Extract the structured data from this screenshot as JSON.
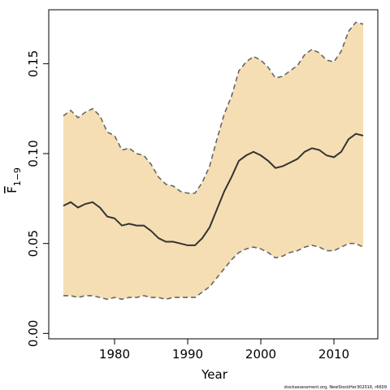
{
  "chart_data": {
    "type": "area",
    "xlabel": "Year",
    "ylabel": "F",
    "ylabel_sub": "1−9",
    "xlim": [
      1971,
      2016
    ],
    "ylim": [
      -0.003,
      0.18
    ],
    "xticks": [
      1980,
      1990,
      2000,
      2010
    ],
    "yticks": [
      0.0,
      0.05,
      0.1,
      0.15
    ],
    "ytick_labels": [
      "0.00",
      "0.05",
      "0.10",
      "0.15"
    ],
    "band_color": "#f5deb3",
    "line_color": "#333333",
    "bound_color": "#666666",
    "x": [
      1973,
      1974,
      1975,
      1976,
      1977,
      1978,
      1979,
      1980,
      1981,
      1982,
      1983,
      1984,
      1985,
      1986,
      1987,
      1988,
      1989,
      1990,
      1991,
      1992,
      1993,
      1994,
      1995,
      1996,
      1997,
      1998,
      1999,
      2000,
      2001,
      2002,
      2003,
      2004,
      2005,
      2006,
      2007,
      2008,
      2009,
      2010,
      2011,
      2012,
      2013,
      2014
    ],
    "series": [
      {
        "role": "estimate",
        "values": [
          0.071,
          0.073,
          0.07,
          0.072,
          0.073,
          0.07,
          0.065,
          0.064,
          0.06,
          0.061,
          0.06,
          0.06,
          0.057,
          0.053,
          0.051,
          0.051,
          0.05,
          0.049,
          0.049,
          0.053,
          0.059,
          0.069,
          0.079,
          0.087,
          0.096,
          0.099,
          0.101,
          0.099,
          0.096,
          0.092,
          0.093,
          0.095,
          0.097,
          0.101,
          0.103,
          0.102,
          0.099,
          0.098,
          0.101,
          0.108,
          0.111,
          0.11
        ]
      },
      {
        "role": "upper",
        "values": [
          0.121,
          0.124,
          0.12,
          0.123,
          0.125,
          0.121,
          0.112,
          0.11,
          0.102,
          0.103,
          0.1,
          0.099,
          0.094,
          0.087,
          0.083,
          0.082,
          0.079,
          0.078,
          0.078,
          0.084,
          0.093,
          0.108,
          0.122,
          0.132,
          0.146,
          0.151,
          0.154,
          0.152,
          0.148,
          0.142,
          0.143,
          0.146,
          0.149,
          0.155,
          0.158,
          0.156,
          0.152,
          0.151,
          0.157,
          0.168,
          0.173,
          0.172
        ]
      },
      {
        "role": "lower",
        "values": [
          0.021,
          0.021,
          0.02,
          0.021,
          0.021,
          0.02,
          0.019,
          0.02,
          0.019,
          0.02,
          0.02,
          0.021,
          0.02,
          0.02,
          0.019,
          0.02,
          0.02,
          0.02,
          0.02,
          0.023,
          0.026,
          0.031,
          0.036,
          0.041,
          0.045,
          0.047,
          0.048,
          0.047,
          0.045,
          0.042,
          0.043,
          0.045,
          0.046,
          0.048,
          0.049,
          0.048,
          0.046,
          0.046,
          0.048,
          0.05,
          0.05,
          0.048
        ]
      }
    ]
  },
  "credit_text": "stockassessment.org, NewStockHer302016, r6609"
}
